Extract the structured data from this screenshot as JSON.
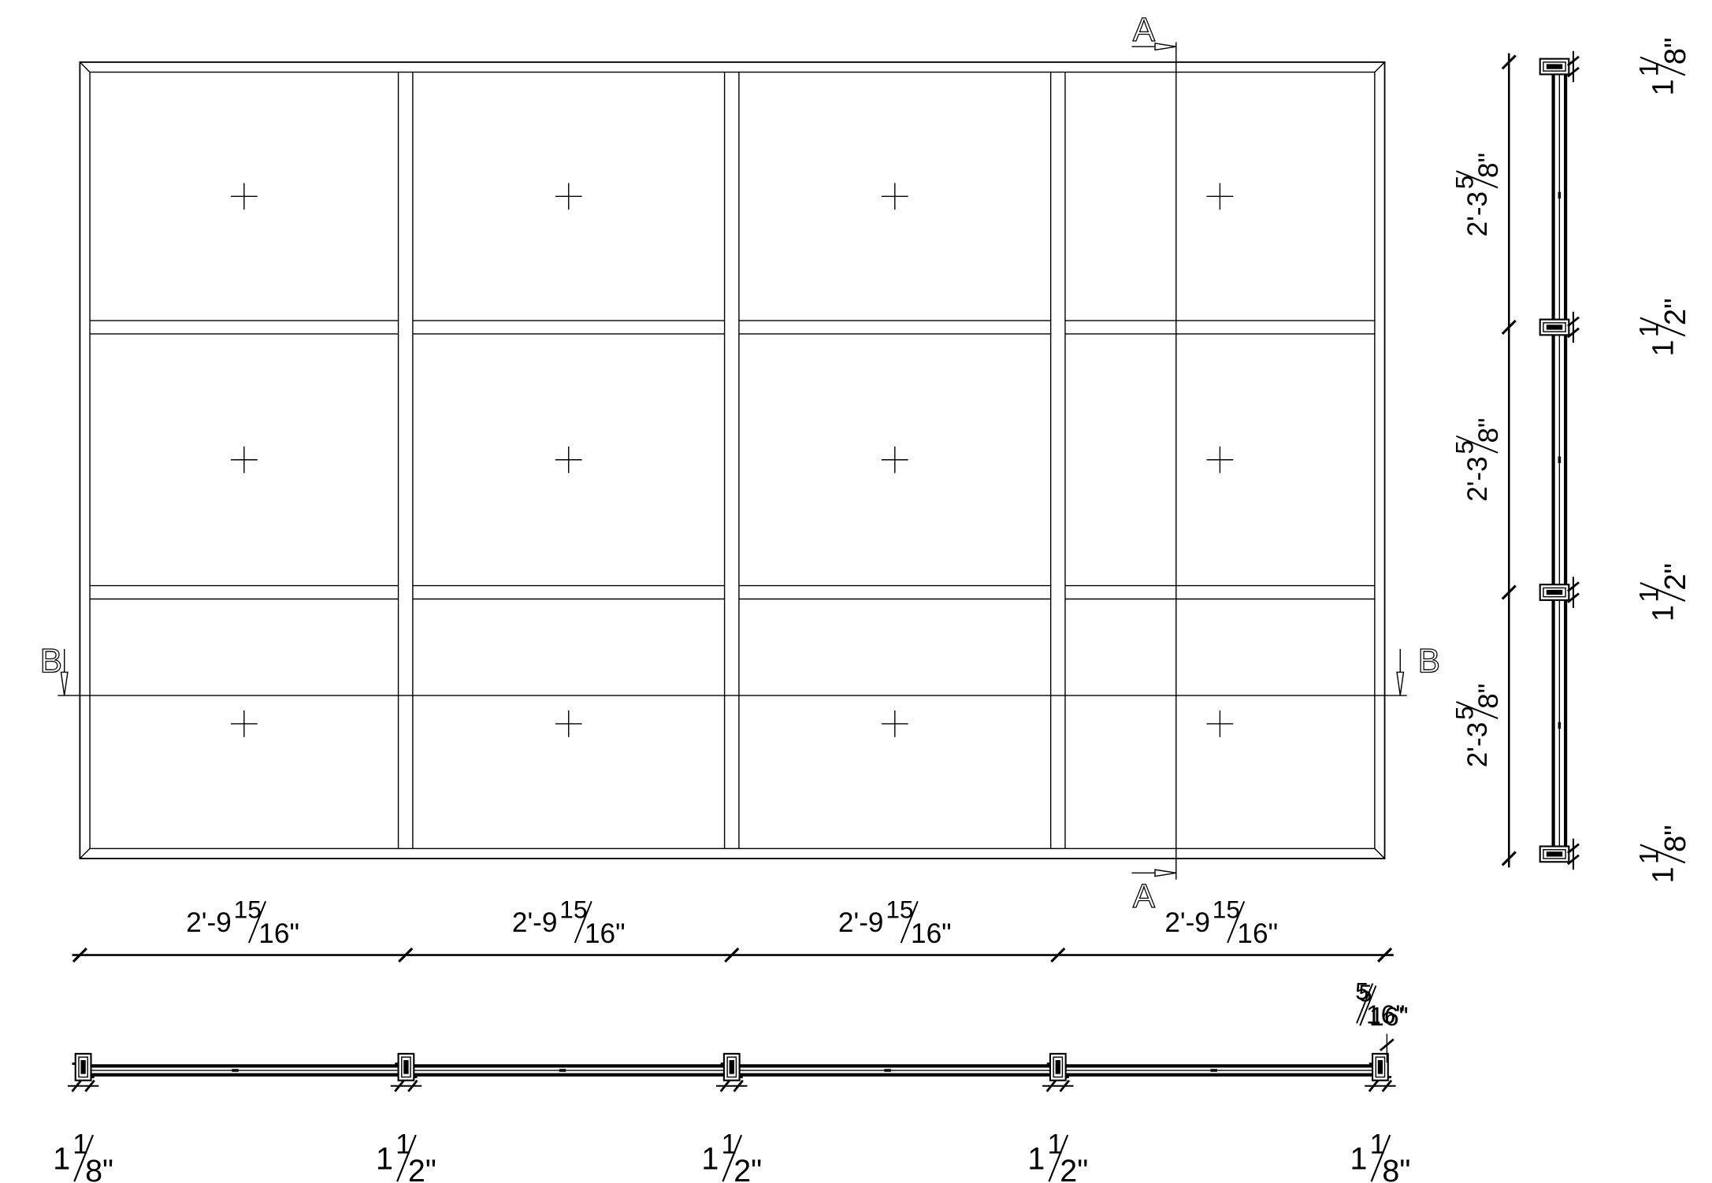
{
  "colors": {
    "line": "#000000",
    "background": "#ffffff"
  },
  "section_marks": {
    "a_top": "A",
    "a_bottom": "A",
    "b_left": "B",
    "b_right": "B"
  },
  "elevation_widths": [
    {
      "whole": "2'-9",
      "num": "15",
      "den": "16",
      "unit": "\""
    },
    {
      "whole": "2'-9",
      "num": "15",
      "den": "16",
      "unit": "\""
    },
    {
      "whole": "2'-9",
      "num": "15",
      "den": "16",
      "unit": "\""
    },
    {
      "whole": "2'-9",
      "num": "15",
      "den": "16",
      "unit": "\""
    }
  ],
  "elevation_heights": [
    {
      "whole": "2'-3",
      "num": "5",
      "den": "8",
      "unit": "\""
    },
    {
      "whole": "2'-3",
      "num": "5",
      "den": "8",
      "unit": "\""
    },
    {
      "whole": "2'-3",
      "num": "5",
      "den": "8",
      "unit": "\""
    }
  ],
  "section_b_members": [
    {
      "whole": "1",
      "num": "1",
      "den": "8",
      "unit": "\""
    },
    {
      "whole": "1",
      "num": "1",
      "den": "2",
      "unit": "\""
    },
    {
      "whole": "1",
      "num": "1",
      "den": "2",
      "unit": "\""
    },
    {
      "whole": "1",
      "num": "1",
      "den": "2",
      "unit": "\""
    },
    {
      "whole": "1",
      "num": "1",
      "den": "8",
      "unit": "\""
    }
  ],
  "section_a_members": [
    {
      "whole": "1",
      "num": "1",
      "den": "8",
      "unit": "\""
    },
    {
      "whole": "1",
      "num": "1",
      "den": "2",
      "unit": "\""
    },
    {
      "whole": "1",
      "num": "1",
      "den": "2",
      "unit": "\""
    },
    {
      "whole": "1",
      "num": "1",
      "den": "8",
      "unit": "\""
    }
  ],
  "glass_bite": {
    "num": "5",
    "den": "16",
    "unit": "\""
  }
}
